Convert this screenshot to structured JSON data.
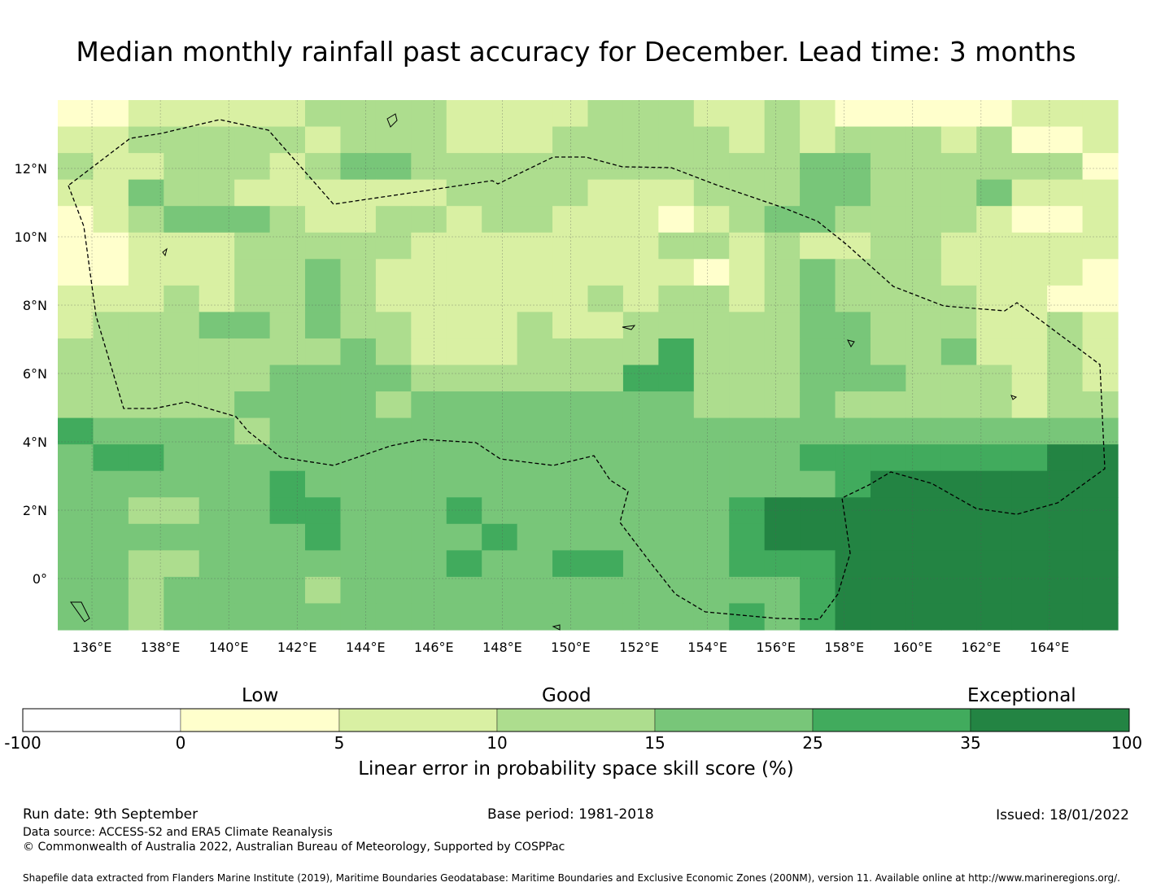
{
  "title": "Median monthly rainfall past accuracy for December. Lead time: 3 months",
  "map": {
    "lon_range": [
      135,
      166
    ],
    "lat_range": [
      -1.5,
      14
    ],
    "lon_ticks": [
      "136°E",
      "138°E",
      "140°E",
      "142°E",
      "144°E",
      "146°E",
      "148°E",
      "150°E",
      "152°E",
      "154°E",
      "156°E",
      "158°E",
      "160°E",
      "162°E",
      "164°E"
    ],
    "lat_ticks": [
      "12°N",
      "10°N",
      "8°N",
      "6°N",
      "4°N",
      "2°N",
      "0°"
    ],
    "lon_tick_values": [
      136,
      138,
      140,
      142,
      144,
      146,
      148,
      150,
      152,
      154,
      156,
      158,
      160,
      162,
      164
    ],
    "lat_tick_values": [
      12,
      10,
      8,
      6,
      4,
      2,
      0
    ],
    "grid": true,
    "boundary": "dashed EEZ outline",
    "skill_grid_rows_north_to_south": [
      "112222233332222333223211111222",
      "223333323332223333323233323112",
      "322333234433333333333443333331",
      "224332222223333222333443334222",
      "123444322332332221234433332112",
      "112223333322222223323223322222",
      "112223343222222222123433322221",
      "222323343222222323323433332211",
      "233344343322232233333443332232",
      "333333334322233335333443342232",
      "333333444433333355333444333232",
      "333334444344444444333433333233",
      "544443444444444444444444444444",
      "455444444444444444444555555566",
      "444444544444444444444456666666",
      "443344554445444444456666666666",
      "444444454444544444456666666666",
      "443344444445445544455566666666",
      "443444434444444444444566666666",
      "443444444444444444454566666666"
    ]
  },
  "colorbar": {
    "categories": [
      "Low",
      "Good",
      "Exceptional"
    ],
    "ticks": [
      "-100",
      "0",
      "5",
      "10",
      "15",
      "25",
      "35",
      "100"
    ],
    "colors": [
      "#ffffff",
      "#ffffcc",
      "#d9f0a3",
      "#addd8e",
      "#78c679",
      "#41ab5d",
      "#238443"
    ],
    "label": "Linear error in probability space skill score (%)"
  },
  "footer": {
    "run_date": "Run date: 9th September",
    "base_period": "Base period: 1981-2018",
    "issued": "Issued: 18/01/2022",
    "data_source": "Data source: ACCESS-S2 and ERA5 Climate Reanalysis",
    "copyright": "© Commonwealth of Australia 2022, Australian Bureau of Meteorology, Supported by COSPPac",
    "shapefile": "Shapefile data extracted from Flanders Marine Institute (2019), Maritime Boundaries Geodatabase: Maritime Boundaries and Exclusive Economic Zones (200NM), version 11. Available online at http://www.marineregions.org/."
  }
}
